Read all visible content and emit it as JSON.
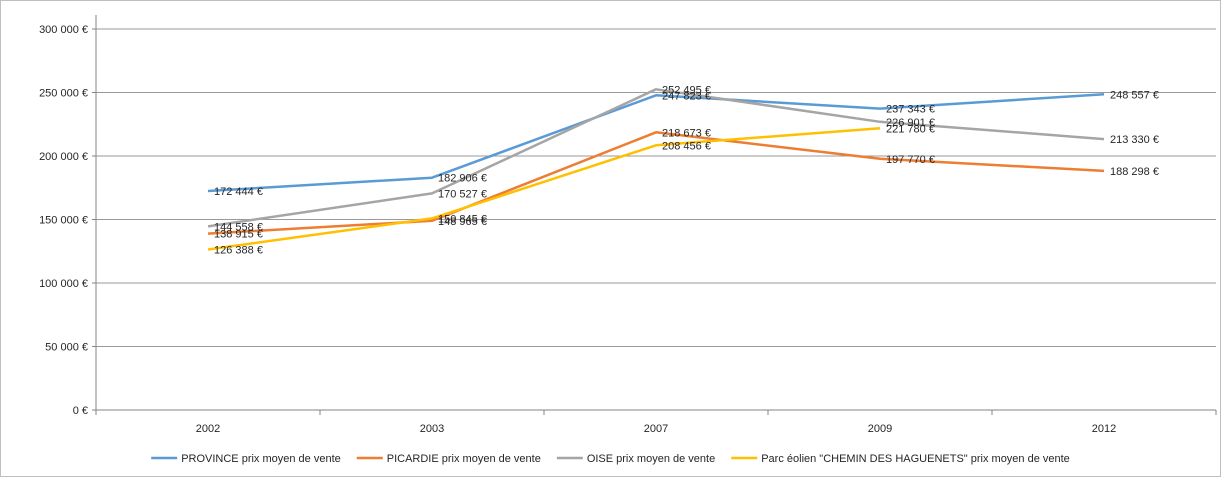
{
  "chart_data": {
    "type": "line",
    "categories": [
      "2002",
      "2003",
      "2007",
      "2009",
      "2012"
    ],
    "ylim": [
      0,
      300000
    ],
    "yticks": [
      0,
      50000,
      100000,
      150000,
      200000,
      250000,
      300000
    ],
    "ytick_labels": [
      "0 €",
      "50 000 €",
      "100 000 €",
      "150 000 €",
      "200 000 €",
      "250 000 €",
      "300 000 €"
    ],
    "grid": true,
    "legend_position": "bottom",
    "series": [
      {
        "name": "PROVINCE prix moyen de vente",
        "color": "#5b9bd5",
        "values": [
          172444,
          182906,
          247823,
          237343,
          248557
        ],
        "labels": [
          "172 444 €",
          "182 906 €",
          "247 823 €",
          "237 343 €",
          "248 557 €"
        ]
      },
      {
        "name": "PICARDIE prix moyen de vente",
        "color": "#ed7d31",
        "values": [
          138915,
          148965,
          218673,
          197770,
          188298
        ],
        "labels": [
          "138 915 €",
          "148 965 €",
          "218 673 €",
          "197 770 €",
          "188 298 €"
        ]
      },
      {
        "name": "OISE prix moyen de vente",
        "color": "#a5a5a5",
        "values": [
          144558,
          170527,
          252495,
          226901,
          213330
        ],
        "labels": [
          "144 558 €",
          "170 527 €",
          "252 495 €",
          "226 901 €",
          "213 330 €"
        ]
      },
      {
        "name": "Parc éolien \"CHEMIN DES HAGUENETS\" prix moyen de vente",
        "color": "#ffc000",
        "values": [
          126388,
          150845,
          208456,
          221780,
          null
        ],
        "labels": [
          "126 388 €",
          "150 845 €",
          "208 456 €",
          "221 780 €",
          null
        ]
      }
    ]
  }
}
